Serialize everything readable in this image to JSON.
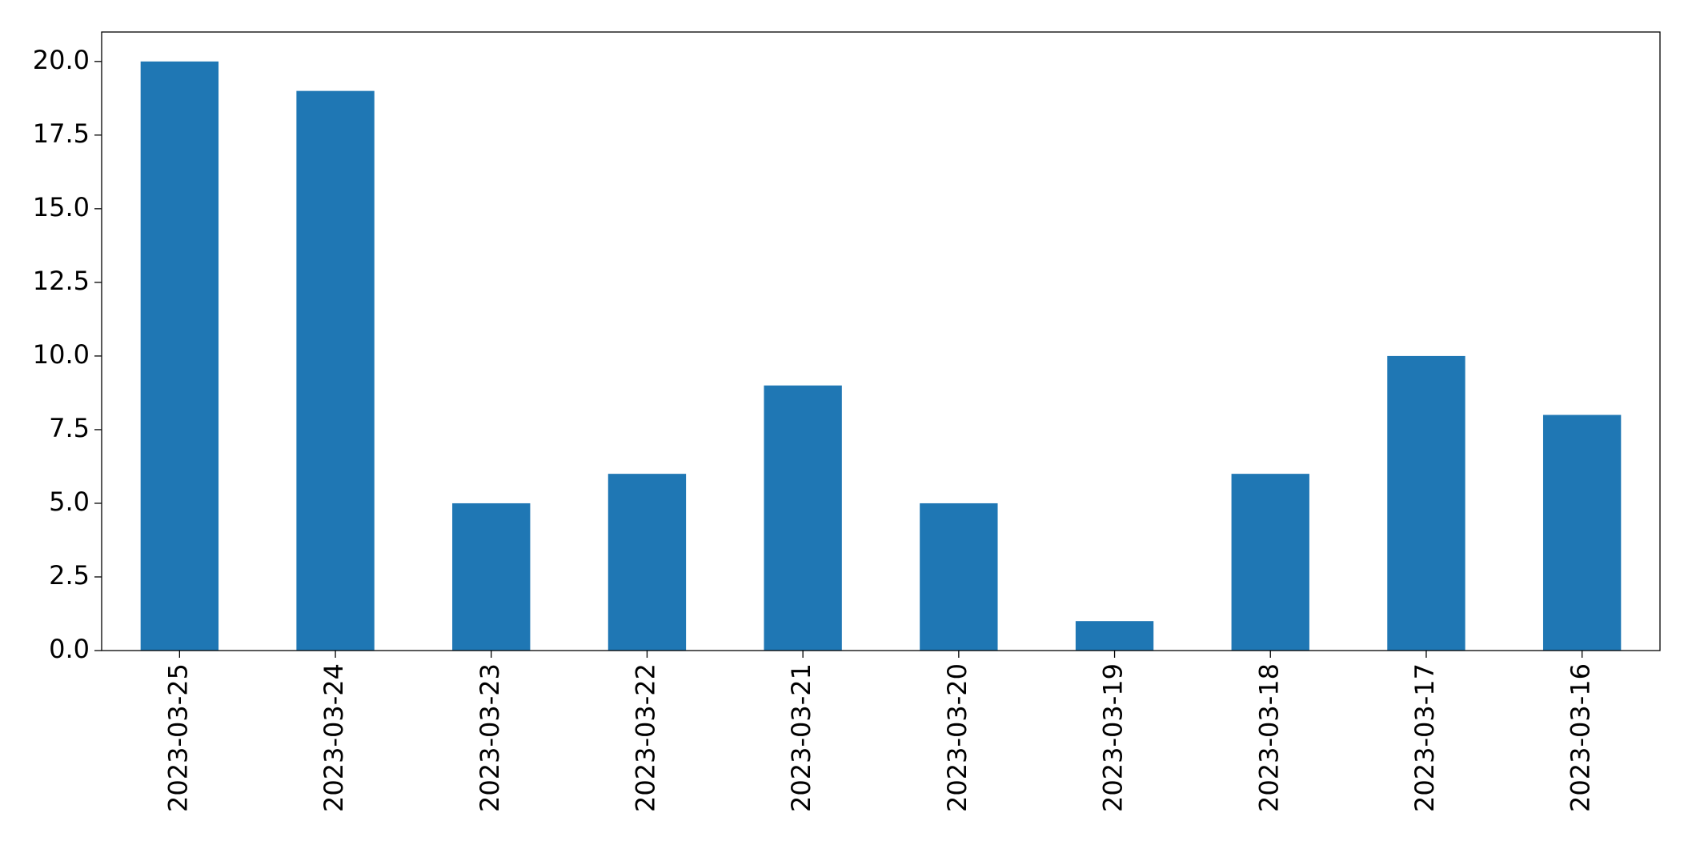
{
  "chart_data": {
    "type": "bar",
    "categories": [
      "2023-03-25",
      "2023-03-24",
      "2023-03-23",
      "2023-03-22",
      "2023-03-21",
      "2023-03-20",
      "2023-03-19",
      "2023-03-18",
      "2023-03-17",
      "2023-03-16"
    ],
    "values": [
      20,
      19,
      5,
      6,
      9,
      5,
      1,
      6,
      10,
      8
    ],
    "color": "#1f77b4",
    "ylim": [
      0,
      21
    ],
    "yticks": [
      {
        "value": 0,
        "label": "0.0"
      },
      2.5,
      {
        "value": 5,
        "label": "5.0"
      },
      7.5,
      {
        "value": 10,
        "label": "10.0"
      },
      12.5,
      {
        "value": 15,
        "label": "15.0"
      },
      17.5,
      {
        "value": 20,
        "label": "20.0"
      }
    ],
    "grid": false
  }
}
